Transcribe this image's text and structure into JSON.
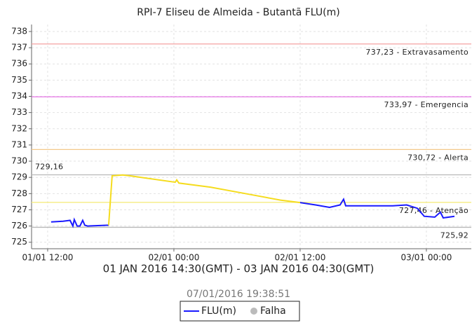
{
  "chart_data": {
    "type": "line",
    "title": "RPI-7 Eliseu de Almeida - Butantã FLU(m)",
    "subtitle": "01 JAN 2016 14:30(GMT) - 03 JAN 2016 04:30(GMT)",
    "timestamp": "07/01/2016 19:38:51",
    "xlim": [
      10.47,
      52.27
    ],
    "xticks": [
      {
        "value": 12,
        "label": "01/01 12:00"
      },
      {
        "value": 24,
        "label": "02/01 00:00"
      },
      {
        "value": 36,
        "label": "02/01 12:00"
      },
      {
        "value": 48,
        "label": "03/01 00:00"
      }
    ],
    "ylim": [
      724.6,
      738.43
    ],
    "yticks": [
      725,
      726,
      727,
      728,
      729,
      730,
      731,
      732,
      733,
      734,
      735,
      736,
      737,
      738
    ],
    "grid": true,
    "thresholds": [
      {
        "value": 737.23,
        "label": "737,23 - Extravasamento",
        "color": "#f4a0a0"
      },
      {
        "value": 733.97,
        "label": "733,97 - Emergencia",
        "color": "#e880e8"
      },
      {
        "value": 730.72,
        "label": "730,72 - Alerta",
        "color": "#f3c98a"
      },
      {
        "value": 727.46,
        "label": "727,46 - Atenção",
        "color": "#f6ec80"
      },
      {
        "value": 729.16,
        "label": "729,16",
        "color": "#b8b8b8"
      },
      {
        "value": 725.92,
        "label": "725,92",
        "color": "#b8b8b8"
      }
    ],
    "series": [
      {
        "name": "FLU(m)",
        "color": "#1a1aff",
        "x": [
          12.33,
          13.47,
          14.13,
          14.4,
          14.53,
          14.8,
          15.07,
          15.33,
          15.53,
          15.8,
          17.8,
          null,
          36,
          37.47,
          38.8,
          39.8,
          40.13,
          40.33,
          42.13,
          44.8,
          46.13,
          47.13,
          47.8,
          48.8,
          49.33,
          49.6,
          50.67
        ],
        "values": [
          726.25,
          726.3,
          726.35,
          726.0,
          726.4,
          726.0,
          726.0,
          726.35,
          726.05,
          726.0,
          726.05,
          null,
          727.45,
          727.3,
          727.15,
          727.3,
          727.65,
          727.25,
          727.25,
          727.25,
          727.3,
          727.1,
          726.6,
          726.55,
          726.85,
          726.5,
          726.6
        ]
      },
      {
        "color": "#f5dc1e",
        "x": [
          17.8,
          18.13,
          19.13,
          19.8,
          24.13,
          24.27,
          24.47,
          27.47,
          30.8,
          34.13,
          36
        ],
        "values": [
          726.05,
          729.1,
          729.15,
          729.1,
          728.7,
          728.85,
          728.65,
          728.4,
          728.0,
          727.6,
          727.45
        ]
      }
    ],
    "falha": {
      "name": "Falha",
      "color": "#bbbbbb"
    }
  }
}
